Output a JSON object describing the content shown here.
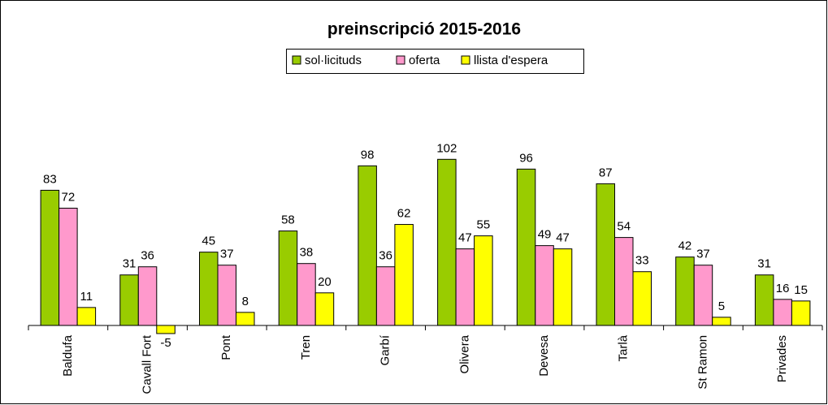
{
  "chart_data": {
    "type": "bar",
    "title": "preinscripció 2015-2016",
    "categories": [
      "Baldufa",
      "Cavall Fort",
      "Pont",
      "Tren",
      "Garbí",
      "Olivera",
      "Devesa",
      "Tarlà",
      "St Ramon",
      "Privades"
    ],
    "series": [
      {
        "name": "sol·licituds",
        "color": "#99cc00",
        "values": [
          83,
          31,
          45,
          58,
          98,
          102,
          96,
          87,
          42,
          31
        ]
      },
      {
        "name": "oferta",
        "color": "#ff99cc",
        "values": [
          72,
          36,
          37,
          38,
          36,
          47,
          49,
          54,
          37,
          16
        ]
      },
      {
        "name": "llista d'espera",
        "color": "#ffff00",
        "values": [
          11,
          -5,
          8,
          20,
          62,
          55,
          47,
          33,
          5,
          15
        ]
      }
    ],
    "ylim": [
      -10,
      150
    ],
    "legend": "top"
  }
}
